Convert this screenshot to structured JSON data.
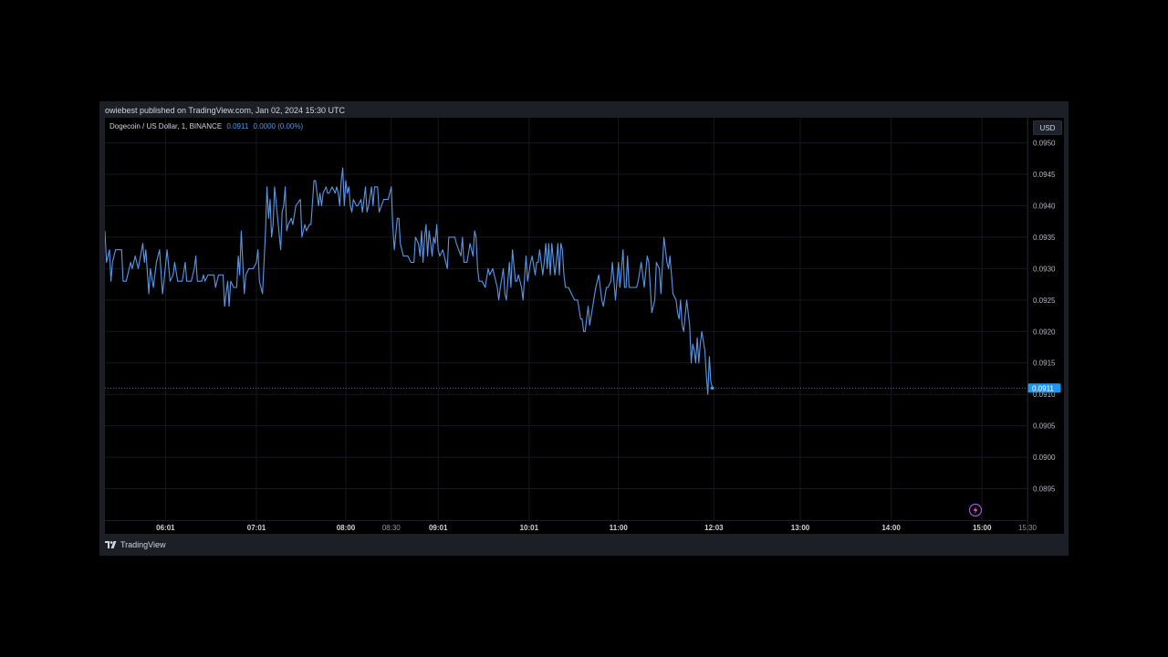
{
  "header": {
    "published_text": "owiebest published on TradingView.com, Jan 02, 2024 15:30 UTC"
  },
  "legend": {
    "symbol": "Dogecoin / US Dollar, 1, BINANCE",
    "last": "0.0911",
    "change": "0.0000 (0.00%)"
  },
  "currency_button": "USD",
  "footer": {
    "brand": "TradingView"
  },
  "colors": {
    "line": "#5a97e8",
    "background": "#000000",
    "frame": "#1c1f25",
    "text": "#d1d4dc",
    "grid": "#15181e"
  },
  "chart_data": {
    "type": "line",
    "title": "Dogecoin / US Dollar, 1, BINANCE",
    "xlabel": "",
    "ylabel": "",
    "grid": true,
    "ylim": [
      0.089,
      0.0954
    ],
    "xlim": [
      "05:21",
      "15:30"
    ],
    "x_ticks": [
      {
        "t": "06:01",
        "bold": true
      },
      {
        "t": "07:01",
        "bold": true
      },
      {
        "t": "08:00",
        "bold": true
      },
      {
        "t": "08:30",
        "bold": false
      },
      {
        "t": "09:01",
        "bold": true
      },
      {
        "t": "10:01",
        "bold": true
      },
      {
        "t": "11:00",
        "bold": true
      },
      {
        "t": "12:03",
        "bold": true
      },
      {
        "t": "13:00",
        "bold": true
      },
      {
        "t": "14:00",
        "bold": true
      },
      {
        "t": "15:00",
        "bold": true
      },
      {
        "t": "15:30",
        "bold": false
      }
    ],
    "y_ticks": [
      "0.0950",
      "0.0945",
      "0.0940",
      "0.0935",
      "0.0930",
      "0.0925",
      "0.0920",
      "0.0915",
      "0.0910",
      "0.0905",
      "0.0900",
      "0.0895"
    ],
    "last_price": "0.0911",
    "series": [
      {
        "values": [
          [
            "05:21",
            0.0936
          ],
          [
            "05:22",
            0.0931
          ],
          [
            "05:24",
            0.0933
          ],
          [
            "05:25",
            0.0928
          ],
          [
            "05:26",
            0.0931
          ],
          [
            "05:28",
            0.0933
          ],
          [
            "05:32",
            0.0933
          ],
          [
            "05:33",
            0.0928
          ],
          [
            "05:35",
            0.0928
          ],
          [
            "05:37",
            0.093
          ],
          [
            "05:38",
            0.0931
          ],
          [
            "05:39",
            0.093
          ],
          [
            "05:41",
            0.0932
          ],
          [
            "05:43",
            0.093
          ],
          [
            "05:46",
            0.0934
          ],
          [
            "05:47",
            0.0931
          ],
          [
            "05:48",
            0.0933
          ],
          [
            "05:50",
            0.0926
          ],
          [
            "05:51",
            0.093
          ],
          [
            "05:53",
            0.0927
          ],
          [
            "05:55",
            0.0931
          ],
          [
            "05:57",
            0.0933
          ],
          [
            "05:59",
            0.0926
          ],
          [
            "06:00",
            0.0928
          ],
          [
            "06:02",
            0.0933
          ],
          [
            "06:04",
            0.0928
          ],
          [
            "06:06",
            0.0929
          ],
          [
            "06:07",
            0.0931
          ],
          [
            "06:09",
            0.0928
          ],
          [
            "06:12",
            0.0928
          ],
          [
            "06:14",
            0.0931
          ],
          [
            "06:15",
            0.0928
          ],
          [
            "06:18",
            0.0928
          ],
          [
            "06:20",
            0.093
          ],
          [
            "06:21",
            0.0932
          ],
          [
            "06:22",
            0.0928
          ],
          [
            "06:25",
            0.0928
          ],
          [
            "06:26",
            0.0929
          ],
          [
            "06:27",
            0.0928
          ],
          [
            "06:29",
            0.0929
          ],
          [
            "06:31",
            0.0929
          ],
          [
            "06:33",
            0.0929
          ],
          [
            "06:34",
            0.0927
          ],
          [
            "06:36",
            0.0929
          ],
          [
            "06:38",
            0.0929
          ],
          [
            "06:39",
            0.0929
          ],
          [
            "06:40",
            0.0924
          ],
          [
            "06:42",
            0.0928
          ],
          [
            "06:43",
            0.0924
          ],
          [
            "06:44",
            0.0928
          ],
          [
            "06:46",
            0.0927
          ],
          [
            "06:48",
            0.0927
          ],
          [
            "06:49",
            0.0932
          ],
          [
            "06:50",
            0.0929
          ],
          [
            "06:51",
            0.0936
          ],
          [
            "06:53",
            0.0926
          ],
          [
            "06:54",
            0.0929
          ],
          [
            "06:56",
            0.093
          ],
          [
            "06:59",
            0.093
          ],
          [
            "07:01",
            0.0931
          ],
          [
            "07:02",
            0.0933
          ],
          [
            "07:03",
            0.0928
          ],
          [
            "07:05",
            0.0926
          ],
          [
            "07:07",
            0.0936
          ],
          [
            "07:08",
            0.0943
          ],
          [
            "07:09",
            0.0938
          ],
          [
            "07:10",
            0.0941
          ],
          [
            "07:11",
            0.0935
          ],
          [
            "07:12",
            0.0937
          ],
          [
            "07:13",
            0.0943
          ],
          [
            "07:15",
            0.0938
          ],
          [
            "07:17",
            0.0933
          ],
          [
            "07:18",
            0.0939
          ],
          [
            "07:19",
            0.094
          ],
          [
            "07:20",
            0.0943
          ],
          [
            "07:21",
            0.0936
          ],
          [
            "07:22",
            0.0937
          ],
          [
            "07:24",
            0.0938
          ],
          [
            "07:25",
            0.0937
          ],
          [
            "07:27",
            0.094
          ],
          [
            "07:30",
            0.0941
          ],
          [
            "07:31",
            0.0935
          ],
          [
            "07:33",
            0.0937
          ],
          [
            "07:34",
            0.0936
          ],
          [
            "07:36",
            0.0937
          ],
          [
            "07:37",
            0.0937
          ],
          [
            "07:39",
            0.0944
          ],
          [
            "07:40",
            0.0944
          ],
          [
            "07:42",
            0.094
          ],
          [
            "07:43",
            0.0942
          ],
          [
            "07:44",
            0.094
          ],
          [
            "07:45",
            0.0942
          ],
          [
            "07:47",
            0.0943
          ],
          [
            "07:48",
            0.0942
          ],
          [
            "07:49",
            0.0942
          ],
          [
            "07:51",
            0.0943
          ],
          [
            "07:53",
            0.0942
          ],
          [
            "07:54",
            0.0943
          ],
          [
            "07:55",
            0.0942
          ],
          [
            "07:56",
            0.094
          ],
          [
            "07:57",
            0.0944
          ],
          [
            "07:58",
            0.0946
          ],
          [
            "07:59",
            0.094
          ],
          [
            "08:00",
            0.0944
          ],
          [
            "08:01",
            0.0942
          ],
          [
            "08:02",
            0.0943
          ],
          [
            "08:03",
            0.094
          ],
          [
            "08:04",
            0.0939
          ],
          [
            "08:05",
            0.0941
          ],
          [
            "08:07",
            0.094
          ],
          [
            "08:08",
            0.094
          ],
          [
            "08:10",
            0.0941
          ],
          [
            "08:11",
            0.0939
          ],
          [
            "08:12",
            0.0941
          ],
          [
            "08:13",
            0.0943
          ],
          [
            "08:14",
            0.0939
          ],
          [
            "08:15",
            0.094
          ],
          [
            "08:17",
            0.0943
          ],
          [
            "08:18",
            0.094
          ],
          [
            "08:19",
            0.0943
          ],
          [
            "08:21",
            0.0943
          ],
          [
            "08:22",
            0.0939
          ],
          [
            "08:25",
            0.0941
          ],
          [
            "08:28",
            0.0941
          ],
          [
            "08:30",
            0.0943
          ],
          [
            "08:31",
            0.0937
          ],
          [
            "08:32",
            0.0933
          ],
          [
            "08:34",
            0.0938
          ],
          [
            "08:35",
            0.0938
          ],
          [
            "08:36",
            0.0934
          ],
          [
            "08:38",
            0.0932
          ],
          [
            "08:41",
            0.0932
          ],
          [
            "08:43",
            0.0931
          ],
          [
            "08:45",
            0.0931
          ],
          [
            "08:46",
            0.0935
          ],
          [
            "08:48",
            0.0934
          ],
          [
            "08:49",
            0.0932
          ],
          [
            "08:50",
            0.0936
          ],
          [
            "08:51",
            0.0931
          ],
          [
            "08:52",
            0.0935
          ],
          [
            "08:53",
            0.0937
          ],
          [
            "08:54",
            0.0932
          ],
          [
            "08:55",
            0.0936
          ],
          [
            "08:57",
            0.0932
          ],
          [
            "08:58",
            0.0935
          ],
          [
            "08:59",
            0.0934
          ],
          [
            "09:00",
            0.0937
          ],
          [
            "09:01",
            0.0933
          ],
          [
            "09:02",
            0.0932
          ],
          [
            "09:04",
            0.0933
          ],
          [
            "09:06",
            0.0931
          ],
          [
            "09:07",
            0.093
          ],
          [
            "09:08",
            0.0935
          ],
          [
            "09:10",
            0.0935
          ],
          [
            "09:12",
            0.0935
          ],
          [
            "09:13",
            0.0934
          ],
          [
            "09:16",
            0.0932
          ],
          [
            "09:17",
            0.0935
          ],
          [
            "09:18",
            0.0931
          ],
          [
            "09:20",
            0.0931
          ],
          [
            "09:22",
            0.0934
          ],
          [
            "09:24",
            0.0932
          ],
          [
            "09:25",
            0.0936
          ],
          [
            "09:26",
            0.0935
          ],
          [
            "09:27",
            0.093
          ],
          [
            "09:28",
            0.0928
          ],
          [
            "09:30",
            0.0928
          ],
          [
            "09:32",
            0.0927
          ],
          [
            "09:34",
            0.093
          ],
          [
            "09:35",
            0.0929
          ],
          [
            "09:37",
            0.093
          ],
          [
            "09:38",
            0.0929
          ],
          [
            "09:40",
            0.0927
          ],
          [
            "09:41",
            0.0925
          ],
          [
            "09:42",
            0.0927
          ],
          [
            "09:44",
            0.093
          ],
          [
            "09:45",
            0.0926
          ],
          [
            "09:46",
            0.0925
          ],
          [
            "09:48",
            0.0931
          ],
          [
            "09:49",
            0.0927
          ],
          [
            "09:50",
            0.0933
          ],
          [
            "09:52",
            0.0928
          ],
          [
            "09:53",
            0.0928
          ],
          [
            "09:54",
            0.0929
          ],
          [
            "09:56",
            0.0927
          ],
          [
            "09:57",
            0.0925
          ],
          [
            "09:59",
            0.0932
          ],
          [
            "10:00",
            0.0928
          ],
          [
            "10:02",
            0.0931
          ],
          [
            "10:03",
            0.0932
          ],
          [
            "10:05",
            0.0929
          ],
          [
            "10:06",
            0.0931
          ],
          [
            "10:07",
            0.0931
          ],
          [
            "10:08",
            0.0933
          ],
          [
            "10:10",
            0.0929
          ],
          [
            "10:11",
            0.0931
          ],
          [
            "10:12",
            0.0934
          ],
          [
            "10:13",
            0.093
          ],
          [
            "10:14",
            0.0934
          ],
          [
            "10:15",
            0.0929
          ],
          [
            "10:16",
            0.0934
          ],
          [
            "10:18",
            0.0929
          ],
          [
            "10:19",
            0.0931
          ],
          [
            "10:20",
            0.0934
          ],
          [
            "10:21",
            0.0929
          ],
          [
            "10:22",
            0.0934
          ],
          [
            "10:23",
            0.0933
          ],
          [
            "10:24",
            0.0929
          ],
          [
            "10:25",
            0.0927
          ],
          [
            "10:27",
            0.0927
          ],
          [
            "10:29",
            0.0926
          ],
          [
            "10:31",
            0.0925
          ],
          [
            "10:33",
            0.0925
          ],
          [
            "10:35",
            0.0922
          ],
          [
            "10:36",
            0.0922
          ],
          [
            "10:37",
            0.092
          ],
          [
            "10:38",
            0.092
          ],
          [
            "10:39",
            0.0922
          ],
          [
            "10:40",
            0.0924
          ],
          [
            "10:41",
            0.0921
          ],
          [
            "10:43",
            0.0924
          ],
          [
            "10:45",
            0.0927
          ],
          [
            "10:47",
            0.0929
          ],
          [
            "10:49",
            0.0925
          ],
          [
            "10:50",
            0.0924
          ],
          [
            "10:52",
            0.0927
          ],
          [
            "10:53",
            0.0927
          ],
          [
            "10:55",
            0.0928
          ],
          [
            "10:56",
            0.0931
          ],
          [
            "10:58",
            0.0925
          ],
          [
            "10:59",
            0.0928
          ],
          [
            "11:00",
            0.0931
          ],
          [
            "11:01",
            0.0927
          ],
          [
            "11:03",
            0.0933
          ],
          [
            "11:04",
            0.0927
          ],
          [
            "11:05",
            0.0927
          ],
          [
            "11:06",
            0.0932
          ],
          [
            "11:07",
            0.0927
          ],
          [
            "11:08",
            0.0927
          ],
          [
            "11:10",
            0.0927
          ],
          [
            "11:12",
            0.0927
          ],
          [
            "11:13",
            0.0928
          ],
          [
            "11:15",
            0.0931
          ],
          [
            "11:17",
            0.0927
          ],
          [
            "11:19",
            0.0932
          ],
          [
            "11:20",
            0.0931
          ],
          [
            "11:22",
            0.0923
          ],
          [
            "11:24",
            0.0925
          ],
          [
            "11:25",
            0.0931
          ],
          [
            "11:27",
            0.093
          ],
          [
            "11:28",
            0.0926
          ],
          [
            "11:30",
            0.0935
          ],
          [
            "11:32",
            0.0931
          ],
          [
            "11:33",
            0.093
          ],
          [
            "11:34",
            0.0932
          ],
          [
            "11:35",
            0.0929
          ],
          [
            "11:36",
            0.0926
          ],
          [
            "11:38",
            0.0925
          ],
          [
            "11:39",
            0.0923
          ],
          [
            "11:40",
            0.0922
          ],
          [
            "11:41",
            0.0925
          ],
          [
            "11:42",
            0.0921
          ],
          [
            "11:43",
            0.092
          ],
          [
            "11:45",
            0.0925
          ],
          [
            "11:47",
            0.0921
          ],
          [
            "11:48",
            0.0915
          ],
          [
            "11:49",
            0.0918
          ],
          [
            "11:50",
            0.0917
          ],
          [
            "11:51",
            0.0915
          ],
          [
            "11:52",
            0.0919
          ],
          [
            "11:53",
            0.0915
          ],
          [
            "11:54",
            0.0918
          ],
          [
            "11:55",
            0.092
          ],
          [
            "11:57",
            0.0917
          ],
          [
            "11:58",
            0.0913
          ],
          [
            "11:59",
            0.091
          ],
          [
            "12:00",
            0.0916
          ],
          [
            "12:01",
            0.0912
          ],
          [
            "12:02",
            0.0911
          ]
        ]
      }
    ]
  }
}
